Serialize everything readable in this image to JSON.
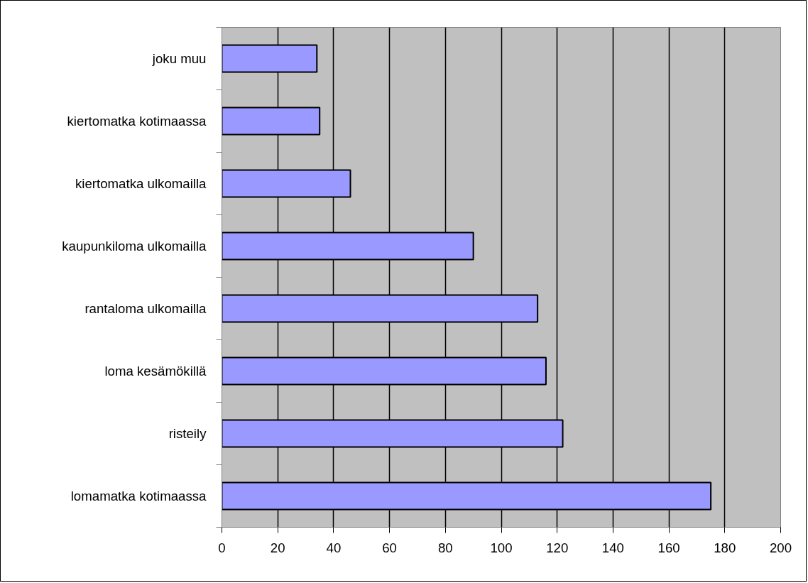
{
  "chart_data": {
    "type": "bar",
    "orientation": "horizontal",
    "categories": [
      "joku muu",
      "kiertomatka kotimaassa",
      "kiertomatka ulkomailla",
      "kaupunkiloma ulkomailla",
      "rantaloma ulkomailla",
      "loma kesämökillä",
      "risteily",
      "lomamatka kotimaassa"
    ],
    "values": [
      34,
      35,
      46,
      90,
      113,
      116,
      122,
      175
    ],
    "color": "#9999ff",
    "xlim": [
      0,
      200
    ],
    "xticks": [
      0,
      20,
      40,
      60,
      80,
      100,
      120,
      140,
      160,
      180,
      200
    ],
    "grid": "x"
  }
}
